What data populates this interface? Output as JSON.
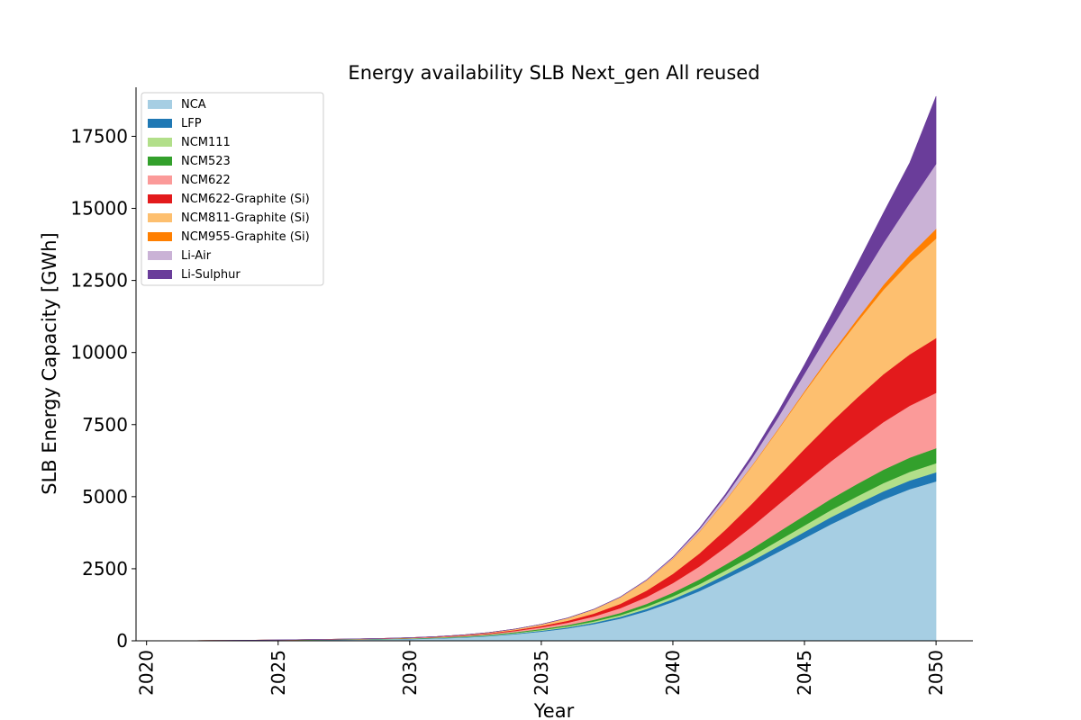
{
  "chart_data": {
    "type": "area",
    "stacked": true,
    "title": "Energy availability SLB Next_gen All reused",
    "xlabel": "Year",
    "ylabel": "SLB Energy Capacity [GWh]",
    "xlim": [
      2019.6,
      2051.4
    ],
    "ylim": [
      0,
      19200
    ],
    "xticks": [
      2020,
      2025,
      2030,
      2035,
      2040,
      2045,
      2050
    ],
    "yticks": [
      0,
      2500,
      5000,
      7500,
      10000,
      12500,
      15000,
      17500
    ],
    "legend_position": "top-left",
    "grid": false,
    "x": [
      2021,
      2022,
      2023,
      2024,
      2025,
      2026,
      2027,
      2028,
      2029,
      2030,
      2031,
      2032,
      2033,
      2034,
      2035,
      2036,
      2037,
      2038,
      2039,
      2040,
      2041,
      2042,
      2043,
      2044,
      2045,
      2046,
      2047,
      2048,
      2049,
      2050
    ],
    "series": [
      {
        "name": "NCA",
        "color": "#a6cee3",
        "values": [
          2,
          5,
          9,
          14,
          19,
          24,
          30,
          38,
          48,
          60,
          80,
          110,
          160,
          230,
          320,
          430,
          580,
          770,
          1030,
          1350,
          1720,
          2150,
          2600,
          3080,
          3560,
          4040,
          4480,
          4900,
          5260,
          5530
        ]
      },
      {
        "name": "LFP",
        "color": "#1f78b4",
        "values": [
          0,
          1,
          1,
          2,
          3,
          4,
          5,
          6,
          7,
          9,
          11,
          14,
          17,
          22,
          28,
          36,
          46,
          60,
          76,
          96,
          120,
          145,
          170,
          195,
          220,
          245,
          265,
          285,
          300,
          315
        ]
      },
      {
        "name": "NCM111",
        "color": "#b2df8a",
        "values": [
          0,
          1,
          1,
          2,
          3,
          4,
          5,
          6,
          7,
          9,
          11,
          14,
          17,
          22,
          28,
          36,
          46,
          60,
          76,
          96,
          120,
          145,
          170,
          195,
          220,
          245,
          265,
          285,
          300,
          315
        ]
      },
      {
        "name": "NCM523",
        "color": "#33a02c",
        "values": [
          0,
          1,
          1,
          2,
          3,
          4,
          5,
          6,
          7,
          9,
          12,
          16,
          20,
          26,
          34,
          44,
          58,
          76,
          100,
          130,
          165,
          205,
          250,
          300,
          345,
          390,
          430,
          465,
          495,
          520
        ]
      },
      {
        "name": "NCM622",
        "color": "#fb9a99",
        "values": [
          0,
          0,
          1,
          1,
          2,
          3,
          4,
          5,
          7,
          10,
          14,
          20,
          28,
          40,
          58,
          82,
          115,
          165,
          235,
          330,
          450,
          600,
          770,
          950,
          1130,
          1300,
          1470,
          1650,
          1800,
          1920
        ]
      },
      {
        "name": "NCM622-Graphite (Si)",
        "color": "#e31a1c",
        "values": [
          0,
          0,
          0,
          1,
          1,
          2,
          3,
          4,
          5,
          7,
          10,
          15,
          22,
          32,
          46,
          68,
          100,
          150,
          225,
          320,
          450,
          610,
          790,
          980,
          1180,
          1350,
          1520,
          1660,
          1780,
          1900
        ]
      },
      {
        "name": "NCM811-Graphite (Si)",
        "color": "#fdbf6f",
        "values": [
          0,
          0,
          0,
          0,
          1,
          1,
          2,
          3,
          4,
          6,
          9,
          14,
          22,
          35,
          55,
          90,
          140,
          220,
          340,
          520,
          740,
          1000,
          1300,
          1620,
          1960,
          2300,
          2620,
          2930,
          3200,
          3450
        ]
      },
      {
        "name": "NCM955-Graphite (Si)",
        "color": "#ff7f00",
        "values": [
          0,
          0,
          0,
          0,
          0,
          0,
          0,
          0,
          0,
          0,
          0,
          0,
          1,
          1,
          2,
          3,
          4,
          6,
          8,
          11,
          14,
          18,
          22,
          30,
          45,
          70,
          110,
          170,
          250,
          340
        ]
      },
      {
        "name": "Li-Air",
        "color": "#cab2d6",
        "values": [
          0,
          0,
          0,
          0,
          0,
          0,
          0,
          0,
          0,
          0,
          0,
          0,
          0,
          1,
          2,
          4,
          7,
          12,
          20,
          40,
          80,
          150,
          250,
          400,
          600,
          850,
          1150,
          1450,
          1800,
          2250
        ]
      },
      {
        "name": "Li-Sulphur",
        "color": "#6a3d9a",
        "values": [
          0,
          0,
          0,
          0,
          0,
          0,
          0,
          0,
          0,
          0,
          0,
          0,
          0,
          0,
          1,
          2,
          3,
          5,
          10,
          20,
          40,
          70,
          120,
          200,
          320,
          500,
          750,
          1050,
          1400,
          2350
        ]
      }
    ]
  }
}
